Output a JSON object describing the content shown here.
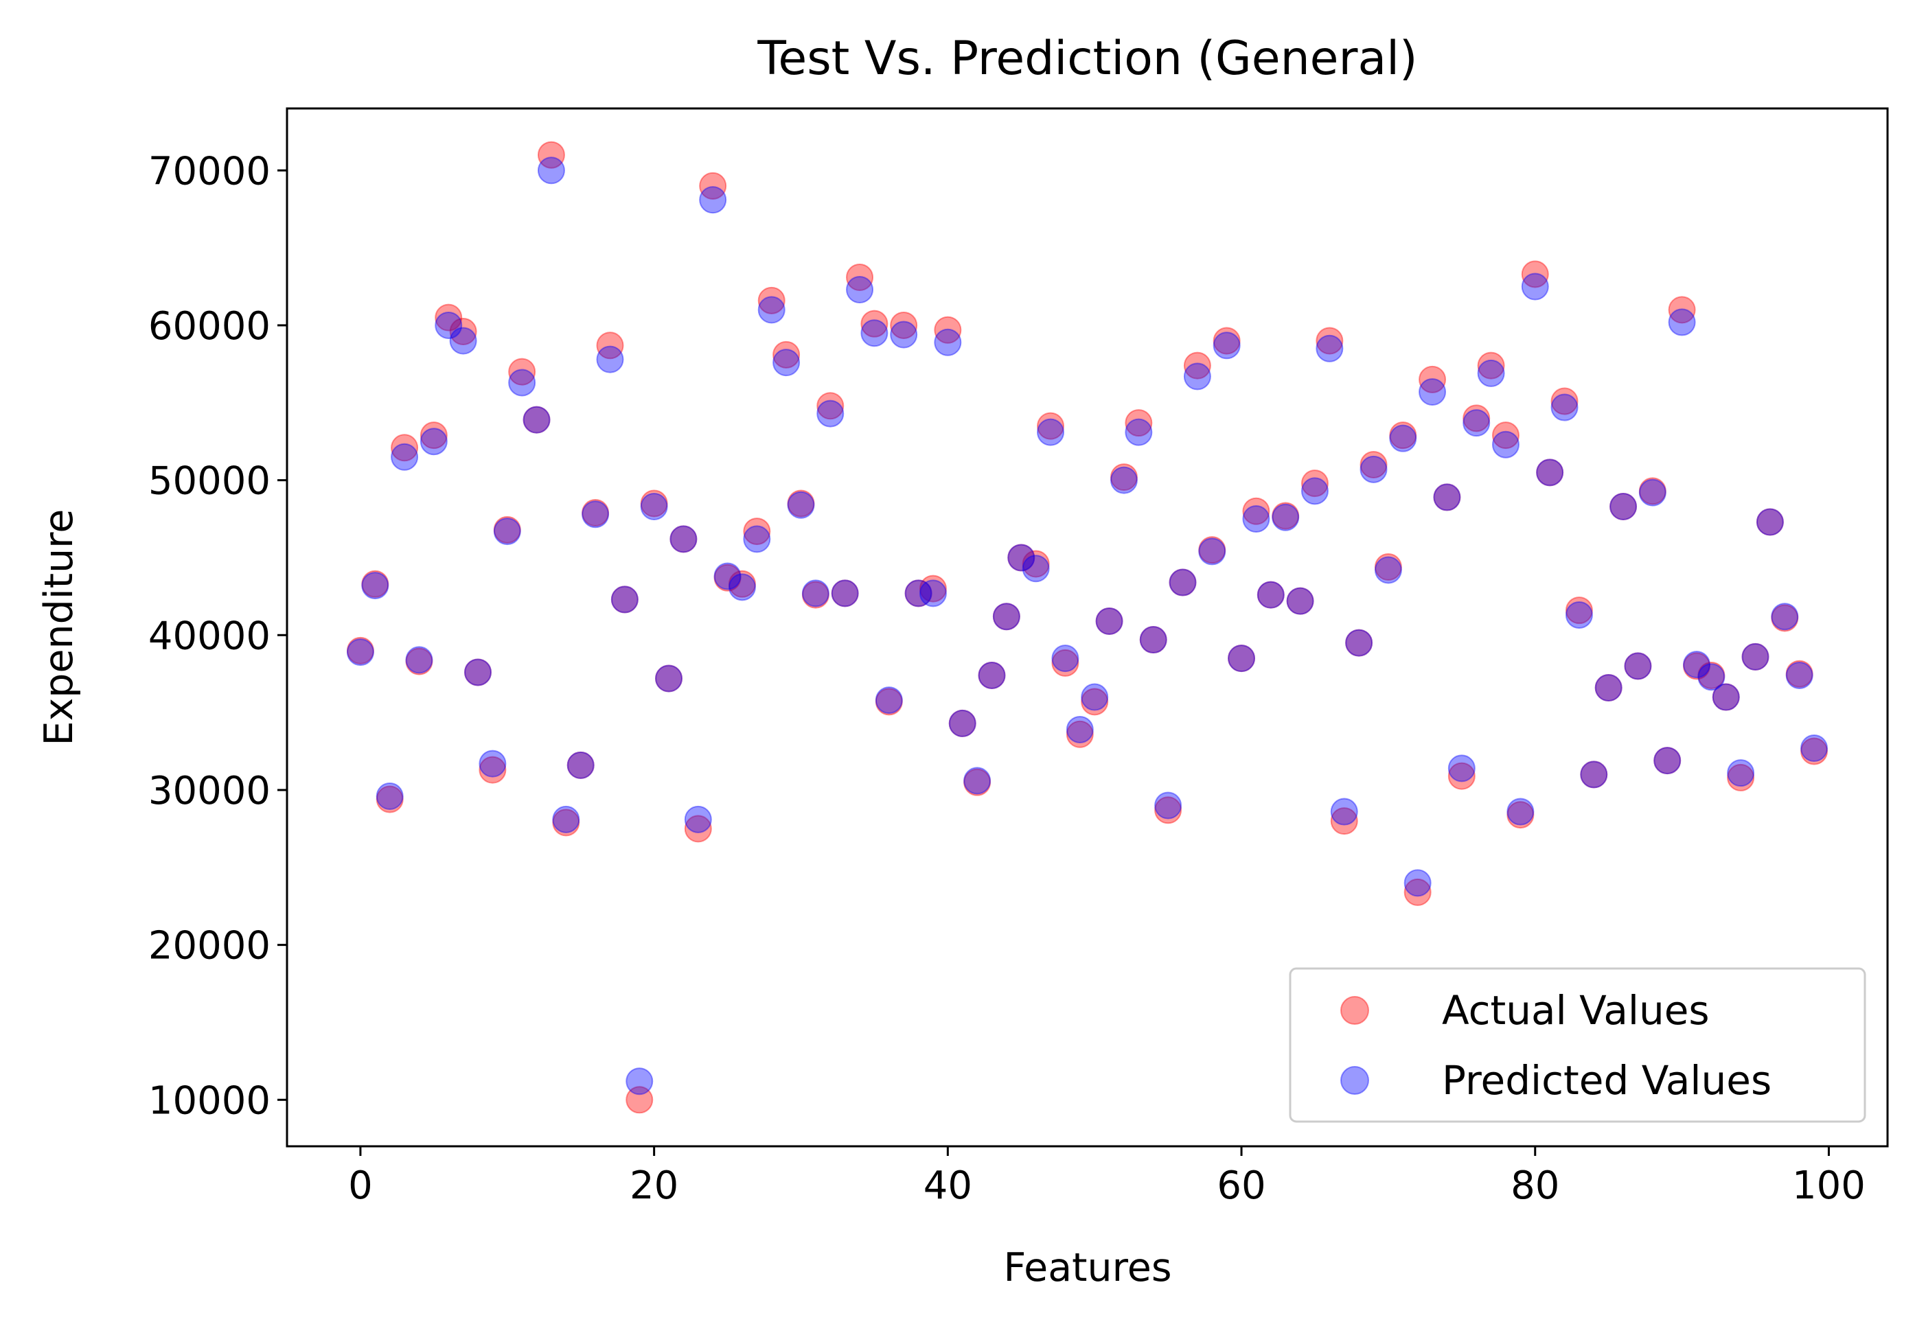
{
  "chart_data": {
    "type": "scatter",
    "title": "Test Vs. Prediction (General)",
    "xlabel": "Features",
    "ylabel": "Expenditure",
    "xlim": [
      -5,
      104
    ],
    "ylim": [
      7000,
      74000
    ],
    "xticks": [
      0,
      20,
      40,
      60,
      80,
      100
    ],
    "yticks": [
      10000,
      20000,
      30000,
      40000,
      50000,
      60000,
      70000
    ],
    "grid": false,
    "legend_position": "lower-right",
    "series": [
      {
        "name": "Actual Values",
        "color": "#ff0000",
        "opacity": 0.4,
        "x": [
          0,
          1,
          2,
          3,
          4,
          5,
          6,
          7,
          8,
          9,
          10,
          11,
          12,
          13,
          14,
          15,
          16,
          17,
          18,
          19,
          20,
          21,
          22,
          23,
          24,
          25,
          26,
          27,
          28,
          29,
          30,
          31,
          32,
          33,
          34,
          35,
          36,
          37,
          38,
          39,
          40,
          41,
          42,
          43,
          44,
          45,
          46,
          47,
          48,
          49,
          50,
          51,
          52,
          53,
          54,
          55,
          56,
          57,
          58,
          59,
          60,
          61,
          62,
          63,
          64,
          65,
          66,
          67,
          68,
          69,
          70,
          71,
          72,
          73,
          74,
          75,
          76,
          77,
          78,
          79,
          80,
          81,
          82,
          83,
          84,
          85,
          86,
          87,
          88,
          89,
          90,
          91,
          92,
          93,
          94,
          95,
          96,
          97,
          98,
          99
        ],
        "values": [
          39000,
          43300,
          29400,
          52100,
          38300,
          52900,
          60500,
          59600,
          37600,
          31300,
          46800,
          57000,
          53900,
          71000,
          27900,
          31600,
          47900,
          58700,
          42300,
          10000,
          48500,
          37200,
          46200,
          27500,
          69000,
          43700,
          43300,
          46700,
          61600,
          58100,
          48500,
          42600,
          54800,
          42700,
          63100,
          60100,
          35700,
          60000,
          42700,
          43000,
          59700,
          34300,
          30500,
          37400,
          41200,
          45000,
          44600,
          53500,
          38200,
          33600,
          35700,
          40900,
          50200,
          53700,
          39700,
          28700,
          43400,
          57400,
          45500,
          59000,
          38500,
          48000,
          42600,
          47700,
          42200,
          49800,
          59000,
          28000,
          39500,
          51000,
          44400,
          52900,
          23400,
          56500,
          48900,
          30900,
          54000,
          57400,
          52900,
          28400,
          63300,
          50500,
          55100,
          41600,
          31000,
          36600,
          48300,
          38000,
          49300,
          31900,
          61000,
          38000,
          37400,
          36000,
          30800,
          38600,
          47300,
          41100,
          37500,
          32500
        ]
      },
      {
        "name": "Predicted Values",
        "color": "#0000ff",
        "opacity": 0.4,
        "x": [
          0,
          1,
          2,
          3,
          4,
          5,
          6,
          7,
          8,
          9,
          10,
          11,
          12,
          13,
          14,
          15,
          16,
          17,
          18,
          19,
          20,
          21,
          22,
          23,
          24,
          25,
          26,
          27,
          28,
          29,
          30,
          31,
          32,
          33,
          34,
          35,
          36,
          37,
          38,
          39,
          40,
          41,
          42,
          43,
          44,
          45,
          46,
          47,
          48,
          49,
          50,
          51,
          52,
          53,
          54,
          55,
          56,
          57,
          58,
          59,
          60,
          61,
          62,
          63,
          64,
          65,
          66,
          67,
          68,
          69,
          70,
          71,
          72,
          73,
          74,
          75,
          76,
          77,
          78,
          79,
          80,
          81,
          82,
          83,
          84,
          85,
          86,
          87,
          88,
          89,
          90,
          91,
          92,
          93,
          94,
          95,
          96,
          97,
          98,
          99
        ],
        "values": [
          38900,
          43200,
          29600,
          51500,
          38400,
          52500,
          60000,
          59000,
          37600,
          31700,
          46700,
          56300,
          53900,
          70000,
          28100,
          31600,
          47800,
          57800,
          42300,
          11200,
          48300,
          37200,
          46200,
          28100,
          68100,
          43800,
          43100,
          46200,
          61000,
          57600,
          48400,
          42700,
          54300,
          42700,
          62300,
          59500,
          35800,
          59400,
          42700,
          42700,
          58900,
          34300,
          30600,
          37400,
          41200,
          45000,
          44300,
          53100,
          38500,
          33900,
          36000,
          40900,
          50000,
          53100,
          39700,
          29000,
          43400,
          56700,
          45400,
          58700,
          38500,
          47500,
          42600,
          47600,
          42200,
          49300,
          58500,
          28600,
          39500,
          50700,
          44200,
          52700,
          24000,
          55700,
          48900,
          31400,
          53700,
          56900,
          52300,
          28600,
          62500,
          50500,
          54700,
          41300,
          31000,
          36600,
          48300,
          38000,
          49200,
          31900,
          60200,
          38100,
          37300,
          36000,
          31100,
          38600,
          47300,
          41200,
          37400,
          32700
        ]
      }
    ]
  }
}
